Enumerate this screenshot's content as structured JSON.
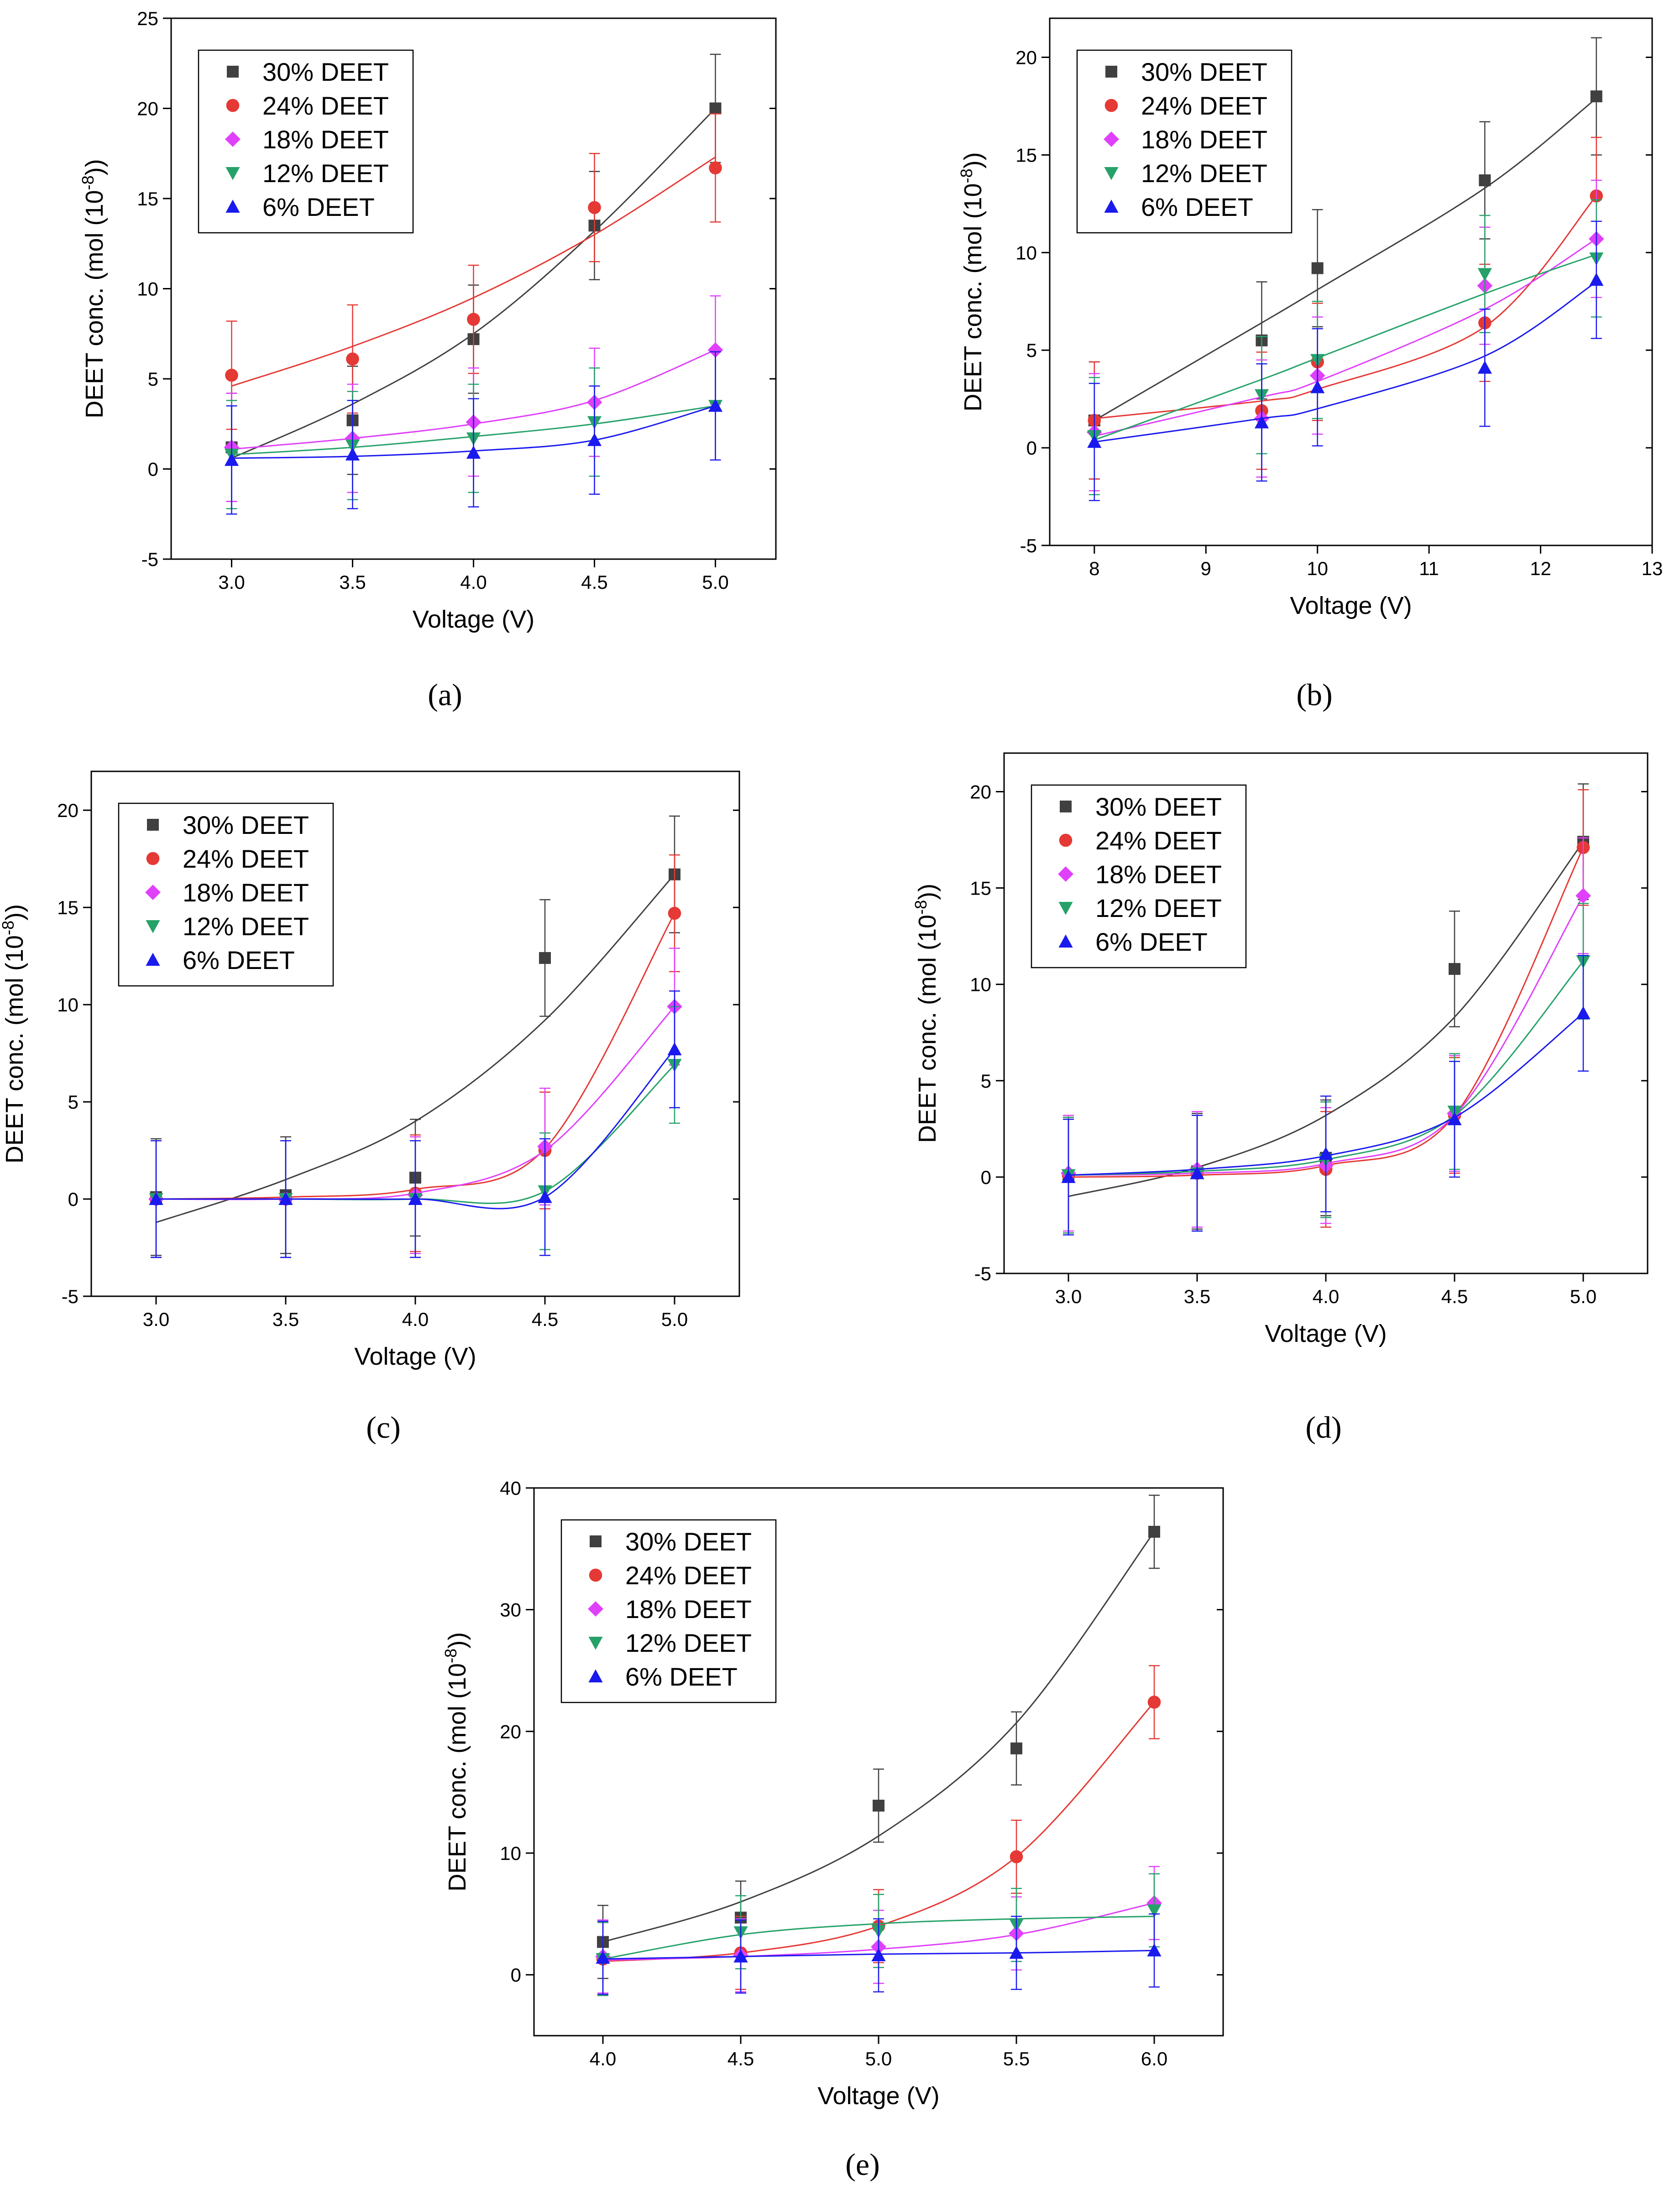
{
  "figure": {
    "series_names": [
      "30% DEET",
      "24% DEET",
      "18% DEET",
      "12% DEET",
      "6% DEET"
    ],
    "colors": {
      "30% DEET": "#404040",
      "24% DEET": "#e53935",
      "18% DEET": "#e040fb",
      "12% DEET": "#26a269",
      "6% DEET": "#1a1aee"
    }
  },
  "chart_data": [
    {
      "type": "scatter",
      "panel_label": "(a)",
      "xlabel": "Voltage (V)",
      "ylabel": "DEET conc. (mol (10^-8))",
      "xlim": [
        2.75,
        5.25
      ],
      "ylim": [
        -5,
        25
      ],
      "xticks": [
        "3.0",
        "3.5",
        "4.0",
        "4.5",
        "5.0"
      ],
      "yticks": [
        "-5",
        "0",
        "5",
        "10",
        "15",
        "20",
        "25"
      ],
      "legend_location": "top-left",
      "x": [
        3.0,
        3.5,
        4.0,
        4.5,
        5.0
      ],
      "series": [
        {
          "name": "30% DEET",
          "marker": "square",
          "values": [
            1.2,
            2.7,
            7.2,
            13.5,
            20.0
          ],
          "error": 3.0,
          "fit": [
            0.6,
            3.6,
            7.5,
            13.2,
            20.0
          ]
        },
        {
          "name": "24% DEET",
          "marker": "circle",
          "values": [
            5.2,
            6.1,
            8.3,
            14.5,
            16.7
          ],
          "error": 3.0,
          "fit": [
            4.6,
            6.8,
            9.5,
            13.0,
            17.3
          ]
        },
        {
          "name": "18% DEET",
          "marker": "diamond",
          "values": [
            1.2,
            1.7,
            2.6,
            3.7,
            6.6
          ],
          "error": 3.0,
          "fit": [
            1.1,
            1.7,
            2.5,
            3.8,
            6.6
          ]
        },
        {
          "name": "12% DEET",
          "marker": "triangle-down",
          "values": [
            0.8,
            1.3,
            1.7,
            2.6,
            3.5
          ],
          "error": 3.0,
          "fit": [
            0.8,
            1.2,
            1.8,
            2.5,
            3.5
          ]
        },
        {
          "name": "6% DEET",
          "marker": "triangle-up",
          "values": [
            0.5,
            0.8,
            0.9,
            1.6,
            3.5
          ],
          "error": 3.0,
          "fit": [
            0.6,
            0.7,
            1.0,
            1.6,
            3.5
          ]
        }
      ]
    },
    {
      "type": "scatter",
      "panel_label": "(b)",
      "xlabel": "Voltage (V)",
      "ylabel": "DEET conc. (mol (10^-8))",
      "xlim": [
        7.6,
        13
      ],
      "ylim": [
        -5,
        22
      ],
      "xticks": [
        "8",
        "9",
        "10",
        "11",
        "12",
        "13"
      ],
      "yticks": [
        "-5",
        "0",
        "5",
        "10",
        "15",
        "20"
      ],
      "legend_location": "top-left",
      "x": [
        8.0,
        9.5,
        10.0,
        11.5,
        12.5
      ],
      "series": [
        {
          "name": "30% DEET",
          "marker": "square",
          "values": [
            1.4,
            5.5,
            9.2,
            13.7,
            18.0
          ],
          "error": 3.0,
          "fit": [
            1.4,
            6.4,
            8.1,
            13.3,
            17.9
          ]
        },
        {
          "name": "24% DEET",
          "marker": "circle",
          "values": [
            1.4,
            1.9,
            4.4,
            6.4,
            12.9
          ],
          "error": 3.0,
          "fit": [
            1.5,
            2.4,
            3.0,
            6.2,
            12.9
          ]
        },
        {
          "name": "18% DEET",
          "marker": "diamond",
          "values": [
            0.8,
            1.5,
            3.7,
            8.3,
            10.7
          ],
          "error": 3.0,
          "fit": [
            0.6,
            2.6,
            3.4,
            7.1,
            10.7
          ]
        },
        {
          "name": "12% DEET",
          "marker": "triangle-down",
          "values": [
            0.6,
            2.7,
            4.5,
            8.9,
            9.7
          ],
          "error": 3.0,
          "fit": [
            0.4,
            3.5,
            4.6,
            7.9,
            9.9
          ]
        },
        {
          "name": "6% DEET",
          "marker": "triangle-up",
          "values": [
            0.3,
            1.3,
            3.1,
            4.1,
            8.6
          ],
          "error": 3.0,
          "fit": [
            0.3,
            1.5,
            2.0,
            4.7,
            8.5
          ]
        }
      ]
    },
    {
      "type": "scatter",
      "panel_label": "(c)",
      "xlabel": "Voltage (V)",
      "ylabel": "DEET conc. (mol (10^-8))",
      "xlim": [
        2.75,
        5.25
      ],
      "ylim": [
        -5,
        22
      ],
      "xticks": [
        "3.0",
        "3.5",
        "4.0",
        "4.5",
        "5.0"
      ],
      "yticks": [
        "-5",
        "0",
        "5",
        "10",
        "15",
        "20"
      ],
      "legend_location": "top-left",
      "x": [
        3.0,
        3.5,
        4.0,
        4.5,
        5.0
      ],
      "series": [
        {
          "name": "30% DEET",
          "marker": "square",
          "values": [
            0.1,
            0.2,
            1.1,
            12.4,
            16.7
          ],
          "error": 3.0,
          "fit": [
            -1.2,
            1.0,
            4.0,
            9.2,
            16.7
          ]
        },
        {
          "name": "24% DEET",
          "marker": "circle",
          "values": [
            0.0,
            0.0,
            0.3,
            2.5,
            14.7
          ],
          "error": 3.0,
          "fit": [
            0.0,
            0.1,
            0.5,
            2.6,
            14.7
          ]
        },
        {
          "name": "18% DEET",
          "marker": "diamond",
          "values": [
            0.0,
            0.0,
            0.2,
            2.7,
            9.9
          ],
          "error": 3.0,
          "fit": [
            0.0,
            0.0,
            0.3,
            2.5,
            9.9
          ]
        },
        {
          "name": "12% DEET",
          "marker": "triangle-down",
          "values": [
            0.0,
            0.0,
            0.0,
            0.4,
            6.9
          ],
          "error": 3.0,
          "fit": [
            0.0,
            0.0,
            0.0,
            0.4,
            6.9
          ]
        },
        {
          "name": "6% DEET",
          "marker": "triangle-up",
          "values": [
            0.0,
            0.0,
            0.0,
            0.1,
            7.7
          ],
          "error": 3.0,
          "fit": [
            0.0,
            0.0,
            0.0,
            0.1,
            7.7
          ]
        }
      ]
    },
    {
      "type": "scatter",
      "panel_label": "(d)",
      "xlabel": "Voltage (V)",
      "ylabel": "DEET conc. (mol (10^-8))",
      "xlim": [
        2.75,
        5.25
      ],
      "ylim": [
        -5,
        22
      ],
      "xticks": [
        "3.0",
        "3.5",
        "4.0",
        "4.5",
        "5.0"
      ],
      "yticks": [
        "-5",
        "0",
        "5",
        "10",
        "15",
        "20"
      ],
      "legend_location": "top-left",
      "x": [
        3.0,
        3.5,
        4.0,
        4.5,
        5.0
      ],
      "series": [
        {
          "name": "30% DEET",
          "marker": "square",
          "values": [
            0.1,
            0.3,
            1.0,
            10.8,
            17.4
          ],
          "error": 3.0,
          "fit": [
            -1.0,
            0.5,
            3.2,
            8.3,
            17.4
          ]
        },
        {
          "name": "24% DEET",
          "marker": "circle",
          "values": [
            0.1,
            0.2,
            0.4,
            3.2,
            17.1
          ],
          "error": 3.0,
          "fit": [
            0.0,
            0.1,
            0.6,
            3.2,
            17.1
          ]
        },
        {
          "name": "18% DEET",
          "marker": "diamond",
          "values": [
            0.2,
            0.4,
            0.6,
            3.3,
            14.6
          ],
          "error": 3.0,
          "fit": [
            0.1,
            0.2,
            0.7,
            3.2,
            14.6
          ]
        },
        {
          "name": "12% DEET",
          "marker": "triangle-down",
          "values": [
            0.1,
            0.2,
            0.9,
            3.4,
            11.2
          ],
          "error": 3.0,
          "fit": [
            0.1,
            0.3,
            0.9,
            3.2,
            11.2
          ]
        },
        {
          "name": "6% DEET",
          "marker": "triangle-up",
          "values": [
            0.0,
            0.2,
            1.2,
            3.0,
            8.5
          ],
          "error": 3.0,
          "fit": [
            0.1,
            0.4,
            1.1,
            3.1,
            8.5
          ]
        }
      ]
    },
    {
      "type": "scatter",
      "panel_label": "(e)",
      "xlabel": "Voltage (V)",
      "ylabel": "DEET conc. (mol (10^-8))",
      "xlim": [
        3.75,
        6.25
      ],
      "ylim": [
        -5,
        40
      ],
      "xticks": [
        "4.0",
        "4.5",
        "5.0",
        "5.5",
        "6.0"
      ],
      "yticks": [
        "0",
        "10",
        "20",
        "30",
        "40"
      ],
      "legend_location": "top-left",
      "x": [
        4.0,
        4.5,
        5.0,
        5.5,
        6.0
      ],
      "series": [
        {
          "name": "30% DEET",
          "marker": "square",
          "values": [
            2.7,
            4.7,
            13.9,
            18.6,
            36.4
          ],
          "error": 3.0,
          "fit": [
            2.7,
            6.0,
            11.4,
            20.7,
            36.4
          ]
        },
        {
          "name": "24% DEET",
          "marker": "circle",
          "values": [
            1.3,
            1.8,
            4.0,
            9.7,
            22.4
          ],
          "error": 3.0,
          "fit": [
            1.1,
            1.8,
            4.0,
            9.7,
            22.4
          ]
        },
        {
          "name": "18% DEET",
          "marker": "diamond",
          "values": [
            1.5,
            1.6,
            2.3,
            3.4,
            5.9
          ],
          "error": 3.0,
          "fit": [
            1.2,
            1.5,
            2.1,
            3.3,
            5.9
          ]
        },
        {
          "name": "12% DEET",
          "marker": "triangle-down",
          "values": [
            1.3,
            3.5,
            3.6,
            4.1,
            5.3
          ],
          "error": 3.0,
          "fit": [
            1.3,
            3.3,
            4.2,
            4.6,
            4.8
          ]
        },
        {
          "name": "6% DEET",
          "marker": "triangle-up",
          "values": [
            1.4,
            1.5,
            1.6,
            1.8,
            2.0
          ],
          "error": 3.0,
          "fit": [
            1.3,
            1.5,
            1.7,
            1.8,
            2.0
          ]
        }
      ]
    }
  ]
}
